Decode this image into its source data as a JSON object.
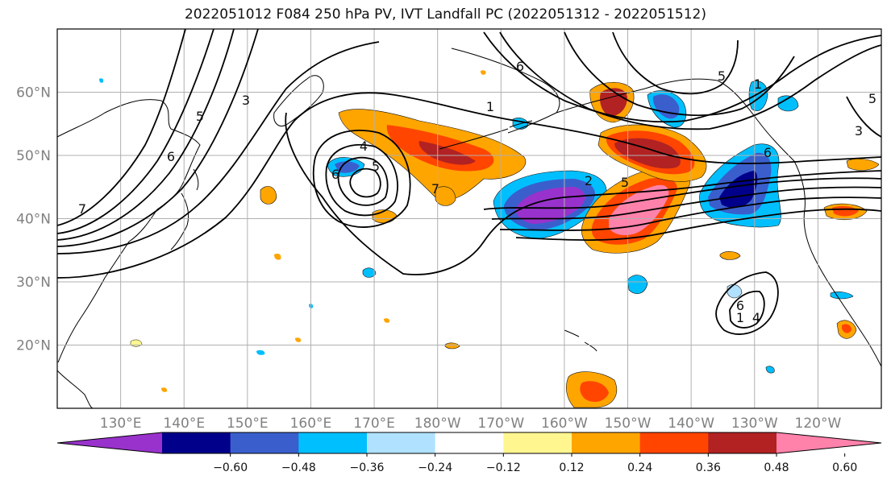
{
  "title": "2022051012 F084 250 hPa PV, IVT Landfall PC (2022051312 - 2022051512)",
  "map": {
    "lon_range": [
      120,
      250
    ],
    "lat_range": [
      10,
      70
    ],
    "lat_ticks": [
      {
        "value": 20,
        "label": "20°N"
      },
      {
        "value": 30,
        "label": "30°N"
      },
      {
        "value": 40,
        "label": "40°N"
      },
      {
        "value": 50,
        "label": "50°N"
      },
      {
        "value": 60,
        "label": "60°N"
      }
    ],
    "lon_ticks": [
      {
        "value": 130,
        "label": "130°E"
      },
      {
        "value": 140,
        "label": "140°E"
      },
      {
        "value": 150,
        "label": "150°E"
      },
      {
        "value": 160,
        "label": "160°E"
      },
      {
        "value": 170,
        "label": "170°E"
      },
      {
        "value": 180,
        "label": "180°W"
      },
      {
        "value": 190,
        "label": "170°W"
      },
      {
        "value": 200,
        "label": "160°W"
      },
      {
        "value": 210,
        "label": "150°W"
      },
      {
        "value": 220,
        "label": "140°W"
      },
      {
        "value": 230,
        "label": "130°W"
      },
      {
        "value": 240,
        "label": "120°W"
      }
    ],
    "grid": true
  },
  "colorbar": {
    "colors": [
      "#9932cc",
      "#00008b",
      "#3a5fcd",
      "#00bfff",
      "#b0e2ff",
      "#ffffff",
      "#fff68f",
      "#ffa500",
      "#ff4500",
      "#b22222",
      "#ff82ab"
    ],
    "tick_labels": [
      "−0.60",
      "−0.48",
      "−0.36",
      "−0.24",
      "−0.12",
      "0.12",
      "0.24",
      "0.36",
      "0.48",
      "0.60"
    ],
    "extend": "both"
  },
  "contour_labels": [
    "3",
    "5",
    "6",
    "7",
    "4",
    "6",
    "5",
    "7",
    "1",
    "6",
    "5",
    "3",
    "1",
    "6",
    "5",
    "2",
    "1",
    "4",
    "6",
    "5"
  ]
}
